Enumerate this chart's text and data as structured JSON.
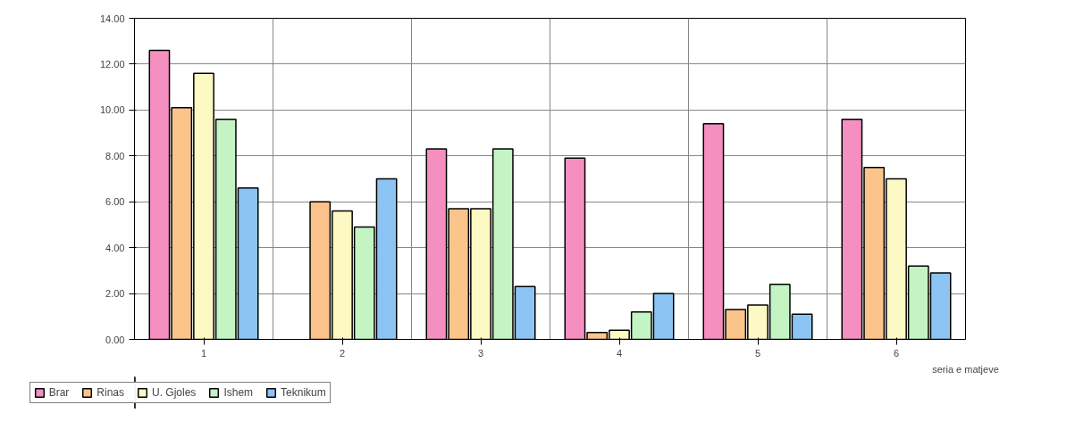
{
  "chart_data": {
    "type": "bar",
    "xlabel": "seria e matjeve",
    "categories": [
      "1",
      "2",
      "3",
      "4",
      "5",
      "6"
    ],
    "series": [
      {
        "name": "Brar",
        "color": "#f48fc0",
        "values": [
          12.6,
          null,
          8.3,
          7.9,
          9.4,
          9.6
        ]
      },
      {
        "name": "Rinas",
        "color": "#fbc48a",
        "values": [
          10.1,
          6.0,
          5.7,
          0.3,
          1.3,
          7.5
        ]
      },
      {
        "name": "U. Gjoles",
        "color": "#fdf9c4",
        "values": [
          11.6,
          5.6,
          5.7,
          0.4,
          1.5,
          7.0
        ]
      },
      {
        "name": "Ishem",
        "color": "#c4f4c4",
        "values": [
          9.6,
          4.9,
          8.3,
          1.2,
          2.4,
          3.2
        ]
      },
      {
        "name": "Teknikum",
        "color": "#8cc4f4",
        "values": [
          6.6,
          7.0,
          2.3,
          2.0,
          1.1,
          2.9
        ]
      }
    ],
    "ylim": [
      0,
      14
    ],
    "yticks": [
      {
        "value": 0,
        "label": "0.00"
      },
      {
        "value": 2,
        "label": "2.00"
      },
      {
        "value": 4,
        "label": "4.00"
      },
      {
        "value": 6,
        "label": "6.00"
      },
      {
        "value": 8,
        "label": "8.00"
      },
      {
        "value": 10,
        "label": "10.00"
      },
      {
        "value": 12,
        "label": "12.00"
      },
      {
        "value": 14,
        "label": "14.00"
      }
    ],
    "grid": true,
    "legend": "bottom left"
  }
}
